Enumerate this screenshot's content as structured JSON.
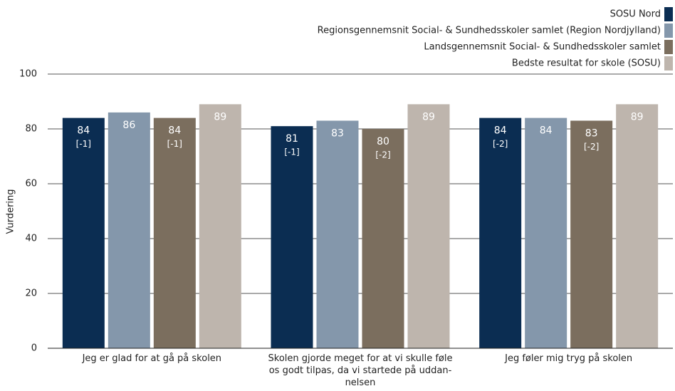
{
  "chart_data": {
    "type": "bar",
    "ylabel": "Vurdering",
    "categories": [
      "Jeg er glad for at gå på skolen",
      "Skolen gjorde meget for at vi skulle føle\nos godt tilpas, da vi startede på uddan-\nnelsen",
      "Jeg føler mig tryg på skolen"
    ],
    "series": [
      {
        "name": "SOSU Nord",
        "color": "#0b2d52",
        "values": [
          84,
          81,
          84
        ],
        "changes": [
          "[-1]",
          "[-1]",
          "[-2]"
        ]
      },
      {
        "name": "Regionsgennemsnit Social- & Sundhedsskoler samlet (Region Nordjylland)",
        "color": "#8497ab",
        "values": [
          86,
          83,
          84
        ],
        "changes": [
          null,
          null,
          null
        ]
      },
      {
        "name": "Landsgennemsnit Social- & Sundhedsskoler samlet",
        "color": "#7b6e5e",
        "values": [
          84,
          80,
          83
        ],
        "changes": [
          "[-1]",
          "[-2]",
          "[-2]"
        ]
      },
      {
        "name": "Bedste resultat for skole (SOSU)",
        "color": "#beb5ad",
        "values": [
          89,
          89,
          89
        ],
        "changes": [
          null,
          null,
          null
        ]
      }
    ],
    "ylim": [
      0,
      100
    ],
    "yticks": [
      0,
      20,
      40,
      60,
      80,
      100
    ],
    "grid": true,
    "legend": "top-right"
  }
}
